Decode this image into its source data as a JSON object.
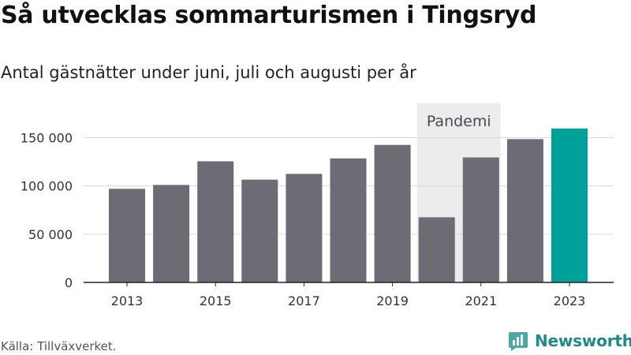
{
  "header": {
    "title": "Så utvecklas sommarturismen i Tingsryd",
    "subtitle": "Antal gästnätter under juni, juli och augusti per år"
  },
  "footer": {
    "source": "Källa: Tillväxverket.",
    "brand": "Newsworthy"
  },
  "colors": {
    "bar": "#6d6c74",
    "highlight": "#00a19a",
    "shade": "#ececec",
    "grid": "#d9d9d9",
    "axis": "#222222",
    "brand": "#1f8a8a"
  },
  "chart_data": {
    "type": "bar",
    "x": [
      2013,
      2014,
      2015,
      2016,
      2017,
      2018,
      2019,
      2020,
      2021,
      2022,
      2023
    ],
    "values": [
      97000,
      101000,
      125500,
      106500,
      112500,
      128500,
      142500,
      67500,
      129500,
      148500,
      159500
    ],
    "x_tick_labels": [
      "2013",
      "2015",
      "2017",
      "2019",
      "2021",
      "2023"
    ],
    "y_tick_values": [
      0,
      50000,
      100000,
      150000
    ],
    "y_tick_labels": [
      "0",
      "50 000",
      "100 000",
      "150 000"
    ],
    "ylim": [
      0,
      172000
    ],
    "highlight": 2023,
    "shaded_region": {
      "from": 2020,
      "to": 2021,
      "label": "Pandemi"
    },
    "grid": true,
    "legend": "none"
  }
}
